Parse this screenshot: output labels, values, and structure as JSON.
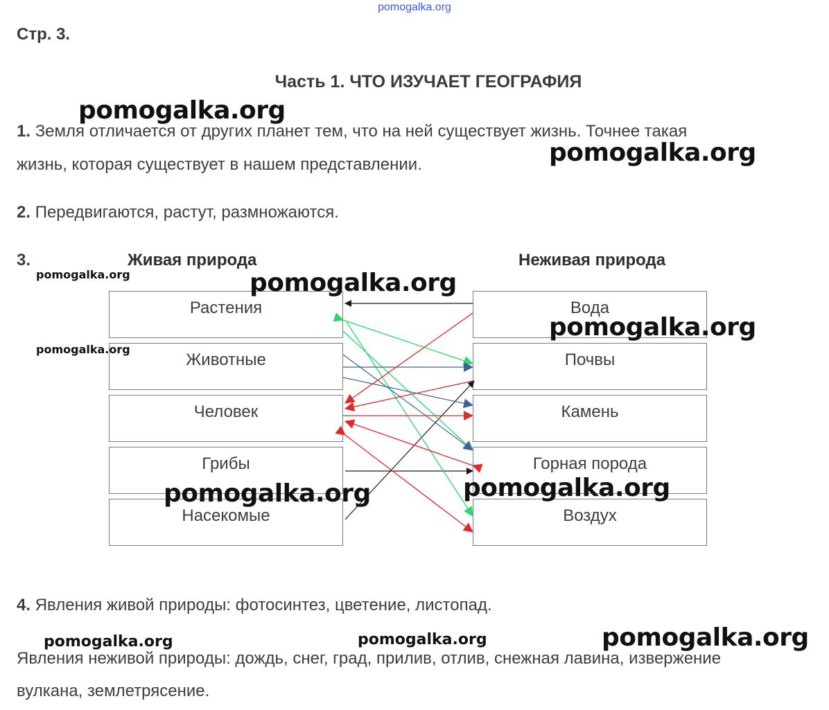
{
  "header_link": "pomogalka.org",
  "page_number": "Стр. 3.",
  "part_title": "Часть 1. ЧТО ИЗУЧАЕТ ГЕОГРАФИЯ",
  "q1": {
    "num": "1.",
    "line1": "Земля отличается от других планет тем, что на ней существует жизнь. Точнее такая",
    "line2": "жизнь, которая существует в нашем представлении."
  },
  "q2": {
    "num": "2.",
    "text": "Передвигаются, растут, размножаются."
  },
  "q3": {
    "num": "3.",
    "left_heading": "Живая природа",
    "right_heading": "Неживая природа",
    "left_items": [
      "Растения",
      "Животные",
      "Человек",
      "Грибы",
      "Насекомые"
    ],
    "right_items": [
      "Вода",
      "Почвы",
      "Камень",
      "Горная порода",
      "Воздух"
    ],
    "colors": {
      "black": "#1a1a1a",
      "green": "#2bd66b",
      "blue": "#3f5f9f",
      "red": "#e02a2a"
    }
  },
  "q4": {
    "num": "4.",
    "line1": "Явления живой природы: фотосинтез, цветение, листопад.",
    "line2": "Явления неживой природы: дождь, снег, град, прилив, отлив, снежная лавина, извержение",
    "line3": "вулкана, землетрясение."
  },
  "watermark": "pomogalka.org"
}
